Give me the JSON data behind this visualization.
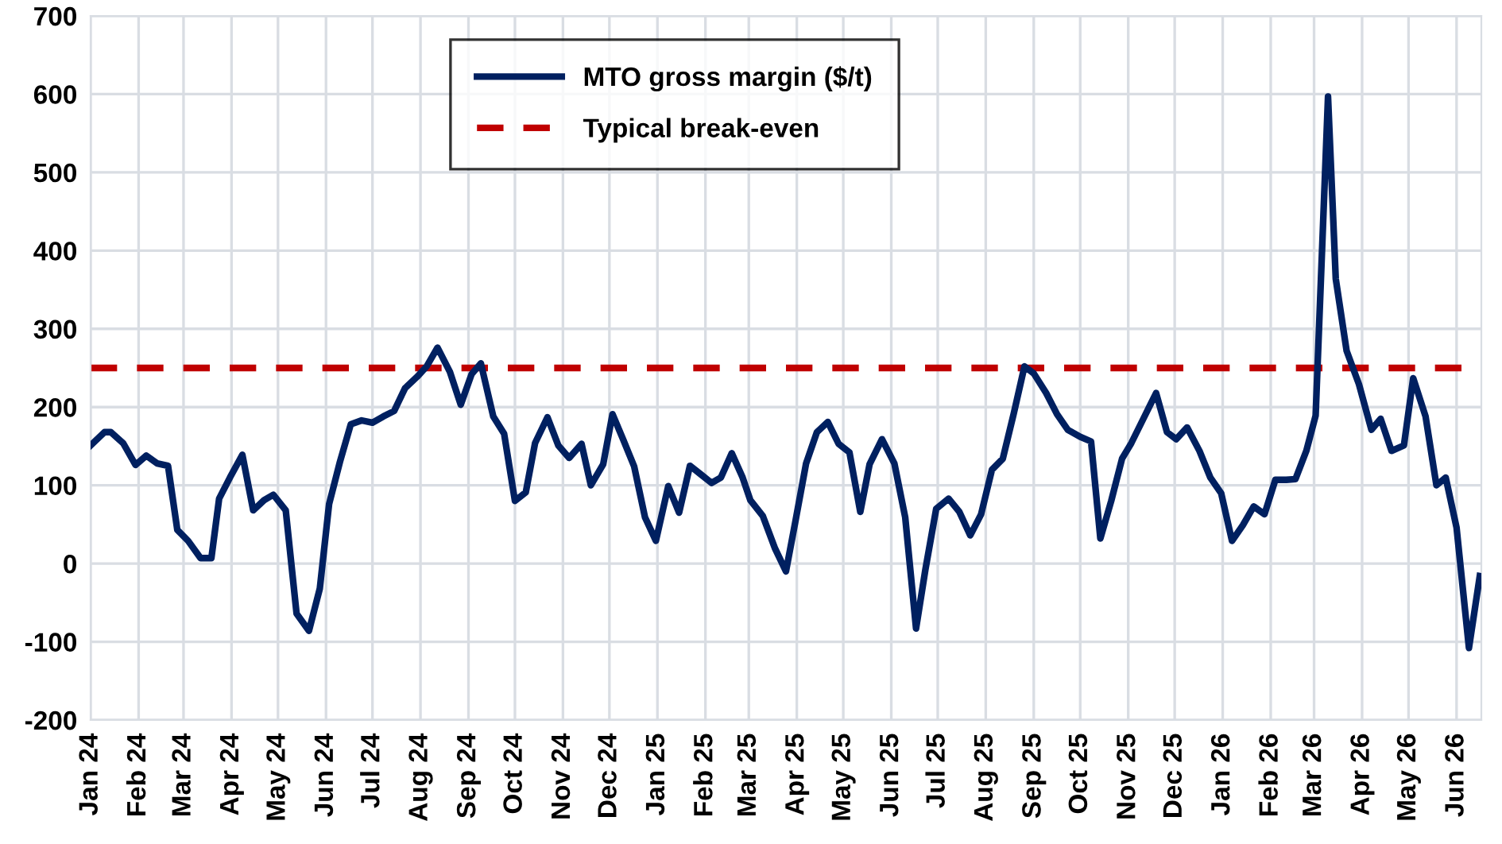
{
  "chart_data": {
    "type": "line",
    "x": [
      "2024-01-01",
      "2024-01-10",
      "2024-01-14",
      "2024-01-22",
      "2024-01-30",
      "2024-02-06",
      "2024-02-13",
      "2024-02-20",
      "2024-02-26",
      "2024-03-04",
      "2024-03-12",
      "2024-03-19",
      "2024-03-24",
      "2024-03-31",
      "2024-04-08",
      "2024-04-15",
      "2024-04-22",
      "2024-04-28",
      "2024-05-06",
      "2024-05-13",
      "2024-05-21",
      "2024-05-28",
      "2024-06-03",
      "2024-06-10",
      "2024-06-17",
      "2024-06-24",
      "2024-07-01",
      "2024-07-08",
      "2024-07-15",
      "2024-07-22",
      "2024-07-30",
      "2024-08-05",
      "2024-08-12",
      "2024-08-20",
      "2024-08-27",
      "2024-09-03",
      "2024-09-09",
      "2024-09-17",
      "2024-09-24",
      "2024-10-01",
      "2024-10-08",
      "2024-10-14",
      "2024-10-22",
      "2024-10-29",
      "2024-11-05",
      "2024-11-13",
      "2024-11-19",
      "2024-11-27",
      "2024-12-03",
      "2024-12-10",
      "2024-12-17",
      "2024-12-24",
      "2024-12-31",
      "2025-01-08",
      "2025-01-15",
      "2025-01-22",
      "2025-01-29",
      "2025-02-05",
      "2025-02-11",
      "2025-02-18",
      "2025-02-25",
      "2025-03-02",
      "2025-03-10",
      "2025-03-18",
      "2025-03-25",
      "2025-03-31",
      "2025-04-07",
      "2025-04-14",
      "2025-04-21",
      "2025-04-28",
      "2025-05-05",
      "2025-05-12",
      "2025-05-18",
      "2025-05-26",
      "2025-06-03",
      "2025-06-10",
      "2025-06-17",
      "2025-06-23",
      "2025-06-30",
      "2025-07-08",
      "2025-07-15",
      "2025-07-22",
      "2025-07-29",
      "2025-08-05",
      "2025-08-12",
      "2025-08-19",
      "2025-08-26",
      "2025-09-01",
      "2025-09-09",
      "2025-09-16",
      "2025-09-23",
      "2025-10-01",
      "2025-10-08",
      "2025-10-14",
      "2025-10-21",
      "2025-10-28",
      "2025-11-03",
      "2025-11-11",
      "2025-11-19",
      "2025-11-26",
      "2025-12-02",
      "2025-12-09",
      "2025-12-17",
      "2025-12-24",
      "2025-12-31",
      "2026-01-07",
      "2026-01-14",
      "2026-01-21",
      "2026-01-28",
      "2026-02-04",
      "2026-02-11",
      "2026-02-17",
      "2026-02-24",
      "2026-03-02",
      "2026-03-10",
      "2026-03-15",
      "2026-03-22",
      "2026-03-30",
      "2026-04-07",
      "2026-04-13",
      "2026-04-20",
      "2026-04-28",
      "2026-05-04",
      "2026-05-12",
      "2026-05-19",
      "2026-05-25",
      "2026-06-01",
      "2026-06-09",
      "2026-06-16"
    ],
    "series": [
      {
        "name": "MTO gross margin ($/t)",
        "color": "#002060",
        "values": [
          151,
          168,
          168,
          154,
          126,
          138,
          128,
          125,
          43,
          29,
          7,
          7,
          83,
          110,
          139,
          68,
          81,
          88,
          68,
          -64,
          -86,
          -32,
          76,
          130,
          178,
          183,
          180,
          188,
          195,
          224,
          239,
          252,
          276,
          245,
          203,
          242,
          256,
          188,
          166,
          80,
          91,
          154,
          187,
          151,
          135,
          153,
          100,
          127,
          191,
          158,
          124,
          59,
          29,
          99,
          65,
          125,
          114,
          103,
          110,
          141,
          110,
          81,
          61,
          19,
          -10,
          53,
          128,
          168,
          181,
          153,
          142,
          66,
          127,
          159,
          128,
          59,
          -83,
          -8,
          70,
          83,
          66,
          36,
          63,
          120,
          134,
          191,
          252,
          243,
          218,
          191,
          171,
          162,
          156,
          32,
          80,
          134,
          154,
          186,
          218,
          168,
          159,
          174,
          144,
          110,
          90,
          29,
          49,
          73,
          63,
          107,
          107,
          108,
          144,
          189,
          597,
          364,
          272,
          229,
          171,
          185,
          144,
          151,
          237,
          188,
          100,
          110,
          46,
          -108,
          -16
        ]
      }
    ],
    "ref_lines": [
      {
        "axis": "y",
        "value": 250,
        "label": "Typical break-even",
        "color": "#c00000",
        "line_style": "dashed"
      }
    ],
    "xlim": [
      "2024-01-01",
      "2026-06-17"
    ],
    "xticks": [
      {
        "value": "2024-01",
        "label": "Jan 24"
      },
      {
        "value": "2024-02",
        "label": "Feb 24"
      },
      {
        "value": "2024-03",
        "label": "Mar 24"
      },
      {
        "value": "2024-04",
        "label": "Apr 24"
      },
      {
        "value": "2024-05",
        "label": "May 24"
      },
      {
        "value": "2024-06",
        "label": "Jun 24"
      },
      {
        "value": "2024-07",
        "label": "Jul 24"
      },
      {
        "value": "2024-08",
        "label": "Aug 24"
      },
      {
        "value": "2024-09",
        "label": "Sep 24"
      },
      {
        "value": "2024-10",
        "label": "Oct 24"
      },
      {
        "value": "2024-11",
        "label": "Nov 24"
      },
      {
        "value": "2024-12",
        "label": "Dec 24"
      },
      {
        "value": "2025-01",
        "label": "Jan 25"
      },
      {
        "value": "2025-02",
        "label": "Feb 25"
      },
      {
        "value": "2025-03",
        "label": "Mar 25"
      },
      {
        "value": "2025-04",
        "label": "Apr 25"
      },
      {
        "value": "2025-05",
        "label": "May 25"
      },
      {
        "value": "2025-06",
        "label": "Jun 25"
      },
      {
        "value": "2025-07",
        "label": "Jul 25"
      },
      {
        "value": "2025-08",
        "label": "Aug 25"
      },
      {
        "value": "2025-09",
        "label": "Sep 25"
      },
      {
        "value": "2025-10",
        "label": "Oct 25"
      },
      {
        "value": "2025-11",
        "label": "Nov 25"
      },
      {
        "value": "2025-12",
        "label": "Dec 25"
      },
      {
        "value": "2026-01",
        "label": "Jan 26"
      },
      {
        "value": "2026-02",
        "label": "Feb 26"
      },
      {
        "value": "2026-03",
        "label": "Mar 26"
      },
      {
        "value": "2026-04",
        "label": "Apr 26"
      },
      {
        "value": "2026-05",
        "label": "May 26"
      },
      {
        "value": "2026-06",
        "label": "Jun 26"
      }
    ],
    "ylim": [
      -200,
      700
    ],
    "yticks": [
      -200,
      -100,
      0,
      100,
      200,
      300,
      400,
      500,
      600,
      700
    ],
    "grid": true,
    "legend": "top",
    "line_style": "solid",
    "marker": "none"
  }
}
